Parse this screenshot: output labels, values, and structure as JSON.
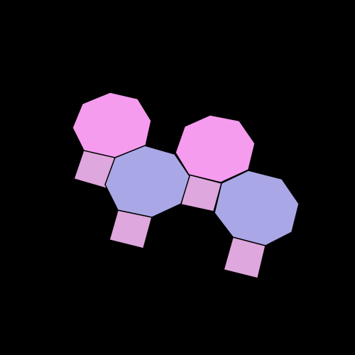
{
  "background_color": "#000000",
  "palette": {
    "pink": "#f59cef",
    "lavender": "#aaa7e6",
    "square": "#dea7dd"
  },
  "tiles": [
    {
      "name": "square-tile-1",
      "shape": "square",
      "color_key": "square"
    },
    {
      "name": "square-tile-2",
      "shape": "square",
      "color_key": "square"
    },
    {
      "name": "square-tile-3",
      "shape": "square",
      "color_key": "square"
    },
    {
      "name": "square-tile-4",
      "shape": "square",
      "color_key": "square"
    },
    {
      "name": "pink-octagon-1",
      "shape": "octagon",
      "color_key": "pink"
    },
    {
      "name": "pink-octagon-2",
      "shape": "octagon",
      "color_key": "pink"
    },
    {
      "name": "lavender-octagon-1",
      "shape": "octagon",
      "color_key": "lavender"
    },
    {
      "name": "lavender-octagon-2",
      "shape": "octagon",
      "color_key": "lavender"
    }
  ]
}
